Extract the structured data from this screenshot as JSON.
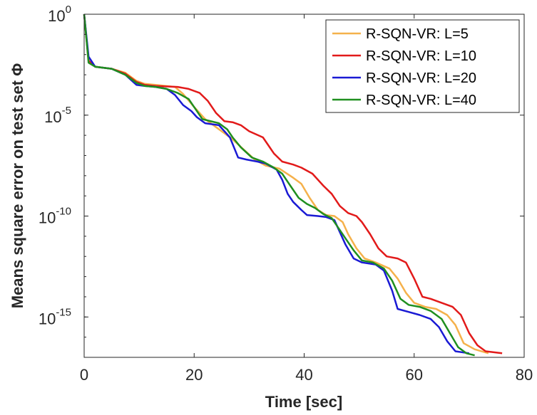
{
  "chart_data": {
    "type": "line",
    "xlabel": "Time [sec]",
    "ylabel": "Means square error on test set Φ",
    "xlim": [
      0,
      80
    ],
    "xticks": [
      0,
      20,
      40,
      60,
      80
    ],
    "yscale": "log",
    "ylim_exponent": [
      -17,
      0
    ],
    "yticks": [
      {
        "exp": 0,
        "base": "10",
        "sup": "0"
      },
      {
        "exp": -5,
        "base": "10",
        "sup": "-5"
      },
      {
        "exp": -10,
        "base": "10",
        "sup": "-10"
      },
      {
        "exp": -15,
        "base": "10",
        "sup": "-15"
      }
    ],
    "grid": false,
    "legend_position": "top-right",
    "series": [
      {
        "name": "R-SQN-VR: L=5",
        "color": "#f5b14b",
        "points": [
          [
            0,
            0
          ],
          [
            0.8,
            -2.3
          ],
          [
            2,
            -2.6
          ],
          [
            5,
            -2.7
          ],
          [
            7.5,
            -2.9
          ],
          [
            9.5,
            -3.3
          ],
          [
            11,
            -3.45
          ],
          [
            13,
            -3.5
          ],
          [
            16.5,
            -3.6
          ],
          [
            18,
            -3.95
          ],
          [
            20,
            -4.6
          ],
          [
            22,
            -5.2
          ],
          [
            24,
            -5.6
          ],
          [
            25.5,
            -5.9
          ],
          [
            27,
            -6.2
          ],
          [
            29,
            -6.7
          ],
          [
            31,
            -7.2
          ],
          [
            33,
            -7.5
          ],
          [
            35.5,
            -7.65
          ],
          [
            38,
            -8.1
          ],
          [
            39.5,
            -8.4
          ],
          [
            41,
            -9.1
          ],
          [
            42.5,
            -9.7
          ],
          [
            44,
            -9.95
          ],
          [
            45.5,
            -10.0
          ],
          [
            47,
            -10.3
          ],
          [
            48,
            -10.9
          ],
          [
            49.5,
            -11.6
          ],
          [
            51,
            -12.1
          ],
          [
            53,
            -12.3
          ],
          [
            55.5,
            -12.6
          ],
          [
            57,
            -13.1
          ],
          [
            58.5,
            -13.8
          ],
          [
            60,
            -14.3
          ],
          [
            62,
            -14.5
          ],
          [
            64,
            -14.6
          ],
          [
            66,
            -14.9
          ],
          [
            67.5,
            -15.4
          ],
          [
            69,
            -16.3
          ],
          [
            71,
            -16.6
          ],
          [
            73.5,
            -16.8
          ]
        ]
      },
      {
        "name": "R-SQN-VR: L=10",
        "color": "#e21a1a",
        "points": [
          [
            0,
            0
          ],
          [
            0.8,
            -2.3
          ],
          [
            2,
            -2.6
          ],
          [
            5,
            -2.7
          ],
          [
            7.5,
            -2.95
          ],
          [
            9.5,
            -3.35
          ],
          [
            11,
            -3.5
          ],
          [
            13,
            -3.55
          ],
          [
            17,
            -3.6
          ],
          [
            19,
            -3.7
          ],
          [
            21,
            -3.9
          ],
          [
            22.5,
            -4.3
          ],
          [
            24,
            -4.9
          ],
          [
            25.5,
            -5.3
          ],
          [
            27,
            -5.35
          ],
          [
            28.5,
            -5.5
          ],
          [
            30,
            -5.8
          ],
          [
            32.5,
            -6.1
          ],
          [
            34.5,
            -6.9
          ],
          [
            36,
            -7.3
          ],
          [
            38,
            -7.45
          ],
          [
            39.5,
            -7.6
          ],
          [
            41.5,
            -7.9
          ],
          [
            43.5,
            -8.5
          ],
          [
            45,
            -8.9
          ],
          [
            46.5,
            -9.5
          ],
          [
            48,
            -9.85
          ],
          [
            49.5,
            -10.0
          ],
          [
            50.5,
            -10.3
          ],
          [
            52,
            -10.9
          ],
          [
            53.5,
            -11.6
          ],
          [
            55,
            -12.0
          ],
          [
            57,
            -12.1
          ],
          [
            58.5,
            -12.3
          ],
          [
            60,
            -13.1
          ],
          [
            61.5,
            -14.0
          ],
          [
            63,
            -14.1
          ],
          [
            65,
            -14.3
          ],
          [
            67,
            -14.5
          ],
          [
            68.5,
            -14.9
          ],
          [
            70,
            -15.8
          ],
          [
            71.5,
            -16.4
          ],
          [
            73,
            -16.7
          ],
          [
            76,
            -16.8
          ]
        ]
      },
      {
        "name": "R-SQN-VR: L=20",
        "color": "#1a1ad4",
        "points": [
          [
            0,
            0
          ],
          [
            0.8,
            -2.1
          ],
          [
            2,
            -2.6
          ],
          [
            5,
            -2.7
          ],
          [
            7.5,
            -3.0
          ],
          [
            9.5,
            -3.5
          ],
          [
            11,
            -3.55
          ],
          [
            13,
            -3.6
          ],
          [
            15,
            -3.7
          ],
          [
            16.5,
            -4.0
          ],
          [
            18,
            -4.5
          ],
          [
            19.5,
            -4.8
          ],
          [
            20.5,
            -5.1
          ],
          [
            22,
            -5.4
          ],
          [
            24.5,
            -5.5
          ],
          [
            25.5,
            -5.8
          ],
          [
            26.5,
            -6.1
          ],
          [
            28,
            -7.1
          ],
          [
            29.5,
            -7.2
          ],
          [
            31.5,
            -7.3
          ],
          [
            33,
            -7.4
          ],
          [
            35,
            -7.7
          ],
          [
            36,
            -8.2
          ],
          [
            37,
            -8.9
          ],
          [
            38,
            -9.3
          ],
          [
            39.5,
            -9.7
          ],
          [
            40.5,
            -9.95
          ],
          [
            42.5,
            -10.0
          ],
          [
            44,
            -10.05
          ],
          [
            45.5,
            -10.2
          ],
          [
            46.5,
            -10.8
          ],
          [
            47.5,
            -11.4
          ],
          [
            49,
            -12.1
          ],
          [
            50.5,
            -12.3
          ],
          [
            53,
            -12.4
          ],
          [
            54.5,
            -12.7
          ],
          [
            56,
            -13.7
          ],
          [
            57,
            -14.6
          ],
          [
            59,
            -14.75
          ],
          [
            61,
            -14.9
          ],
          [
            63,
            -15.1
          ],
          [
            64.5,
            -15.5
          ],
          [
            66,
            -16.2
          ],
          [
            67.5,
            -16.7
          ],
          [
            70,
            -16.8
          ]
        ]
      },
      {
        "name": "R-SQN-VR: L=40",
        "color": "#1f8f1f",
        "points": [
          [
            0,
            0
          ],
          [
            0.8,
            -2.4
          ],
          [
            2,
            -2.6
          ],
          [
            5,
            -2.7
          ],
          [
            7.5,
            -3.0
          ],
          [
            9.5,
            -3.4
          ],
          [
            11,
            -3.55
          ],
          [
            13,
            -3.6
          ],
          [
            15,
            -3.7
          ],
          [
            17,
            -3.9
          ],
          [
            19,
            -4.2
          ],
          [
            20.5,
            -4.8
          ],
          [
            21.5,
            -5.2
          ],
          [
            24.5,
            -5.4
          ],
          [
            26,
            -5.7
          ],
          [
            27,
            -6.1
          ],
          [
            28.5,
            -6.6
          ],
          [
            30.5,
            -7.1
          ],
          [
            32.5,
            -7.3
          ],
          [
            34.5,
            -7.6
          ],
          [
            36,
            -7.9
          ],
          [
            37.5,
            -8.5
          ],
          [
            39,
            -9.1
          ],
          [
            40.5,
            -9.4
          ],
          [
            42,
            -9.6
          ],
          [
            43.5,
            -9.9
          ],
          [
            45,
            -10.1
          ],
          [
            46,
            -10.5
          ],
          [
            47.5,
            -11.1
          ],
          [
            49,
            -11.7
          ],
          [
            50.5,
            -12.2
          ],
          [
            52.5,
            -12.3
          ],
          [
            54.5,
            -12.6
          ],
          [
            56,
            -13.2
          ],
          [
            57.5,
            -14.1
          ],
          [
            59,
            -14.4
          ],
          [
            61,
            -14.5
          ],
          [
            63,
            -14.7
          ],
          [
            65,
            -15.1
          ],
          [
            66.5,
            -15.8
          ],
          [
            68,
            -16.5
          ],
          [
            69.5,
            -16.8
          ],
          [
            71,
            -16.9
          ]
        ]
      }
    ]
  }
}
